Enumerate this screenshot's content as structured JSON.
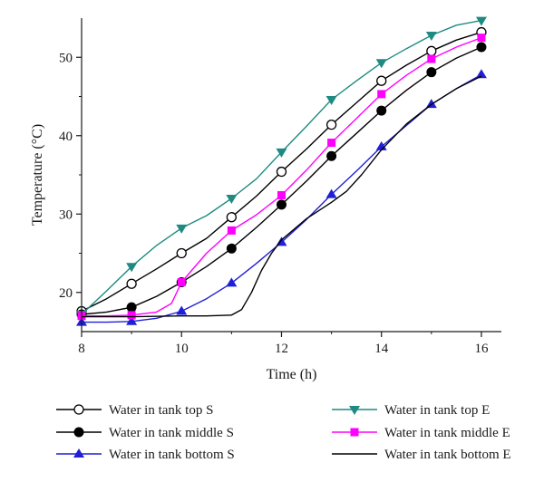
{
  "chart_data": {
    "type": "line",
    "xlabel": "Time (h)",
    "ylabel": "Temperature (°C)",
    "xlim": [
      8,
      16.4
    ],
    "ylim": [
      15,
      55
    ],
    "xticks": [
      8,
      10,
      12,
      14,
      16
    ],
    "xticks_minor": [
      9,
      11,
      13,
      15
    ],
    "yticks": [
      20,
      30,
      40,
      50
    ],
    "grid": false,
    "legend_position": "bottom",
    "series": [
      {
        "name": "Water in tank top S",
        "color": "#000000",
        "marker": "circle-open",
        "x": [
          8,
          8.5,
          9,
          9.5,
          10,
          10.5,
          11,
          11.5,
          12,
          12.5,
          13,
          13.5,
          14,
          14.5,
          15,
          15.5,
          16
        ],
        "y": [
          17.6,
          19.2,
          21.1,
          23.0,
          25.0,
          26.9,
          29.6,
          32.3,
          35.4,
          38.3,
          41.4,
          44.2,
          47.0,
          49.0,
          50.8,
          52.2,
          53.2
        ],
        "marker_x": [
          8,
          9,
          10,
          11,
          12,
          13,
          14,
          15,
          16
        ],
        "marker_y": [
          17.6,
          21.1,
          25.0,
          29.6,
          35.4,
          41.4,
          47.0,
          50.8,
          53.2
        ]
      },
      {
        "name": "Water in tank middle S",
        "color": "#000000",
        "marker": "circle-filled",
        "x": [
          8,
          8.5,
          9,
          9.5,
          10,
          10.5,
          11,
          11.5,
          12,
          12.5,
          13,
          13.5,
          14,
          14.5,
          15,
          15.5,
          16
        ],
        "y": [
          17.2,
          17.5,
          18.1,
          19.5,
          21.3,
          23.3,
          25.6,
          28.3,
          31.2,
          34.2,
          37.4,
          40.3,
          43.2,
          45.8,
          48.1,
          49.9,
          51.3
        ],
        "marker_x": [
          8,
          9,
          10,
          11,
          12,
          13,
          14,
          15,
          16
        ],
        "marker_y": [
          17.2,
          18.1,
          21.3,
          25.6,
          31.2,
          37.4,
          43.2,
          48.1,
          51.3
        ]
      },
      {
        "name": "Water in tank bottom S",
        "color": "#1f1fd6",
        "marker": "triangle-up",
        "x": [
          8,
          8.5,
          9,
          9.5,
          10,
          10.5,
          11,
          11.5,
          12,
          12.5,
          13,
          13.5,
          14,
          14.5,
          15,
          15.5,
          16
        ],
        "y": [
          16.2,
          16.2,
          16.3,
          16.7,
          17.6,
          19.2,
          21.2,
          23.7,
          26.4,
          29.3,
          32.5,
          35.5,
          38.6,
          41.3,
          44.0,
          46.0,
          47.8
        ],
        "marker_x": [
          8,
          9,
          10,
          11,
          12,
          13,
          14,
          15,
          16
        ],
        "marker_y": [
          16.2,
          16.3,
          17.6,
          21.2,
          26.4,
          32.5,
          38.6,
          44.0,
          47.8
        ]
      },
      {
        "name": "Water in tank top E",
        "color": "#1e8a82",
        "marker": "triangle-down",
        "x": [
          8,
          8.5,
          9,
          9.5,
          10,
          10.5,
          11,
          11.5,
          12,
          12.5,
          13,
          13.5,
          14,
          14.5,
          15,
          15.5,
          16
        ],
        "y": [
          17.2,
          20.2,
          23.3,
          26.0,
          28.2,
          29.8,
          32.0,
          34.5,
          37.9,
          41.2,
          44.6,
          47.0,
          49.3,
          51.1,
          52.8,
          54.1,
          54.7
        ],
        "marker_x": [
          8,
          9,
          10,
          11,
          12,
          13,
          14,
          15,
          16
        ],
        "marker_y": [
          17.2,
          23.3,
          28.2,
          32.0,
          37.9,
          44.6,
          49.3,
          52.8,
          54.7
        ]
      },
      {
        "name": "Water in tank middle E",
        "color": "#ff00ff",
        "marker": "square",
        "x": [
          8,
          8.5,
          9,
          9.5,
          9.8,
          10,
          10.5,
          11,
          11.5,
          12,
          12.5,
          13,
          13.5,
          14,
          14.5,
          15,
          15.5,
          16
        ],
        "y": [
          17.0,
          17.0,
          17.1,
          17.5,
          18.6,
          21.3,
          25.0,
          27.9,
          29.9,
          32.4,
          35.6,
          39.1,
          42.2,
          45.3,
          47.7,
          49.8,
          51.3,
          52.5
        ],
        "marker_x": [
          8,
          9,
          10,
          11,
          12,
          13,
          14,
          15,
          16
        ],
        "marker_y": [
          17.0,
          17.1,
          21.3,
          27.9,
          32.4,
          39.1,
          45.3,
          49.8,
          52.5
        ]
      },
      {
        "name": "Water in tank bottom E",
        "color": "#000000",
        "marker": "none",
        "x": [
          8,
          9,
          10,
          10.5,
          11,
          11.2,
          11.4,
          11.6,
          11.8,
          12,
          12.5,
          13,
          13.3,
          13.6,
          14,
          14.5,
          15,
          15.5,
          16
        ],
        "y": [
          16.9,
          16.9,
          17.0,
          17.0,
          17.1,
          17.8,
          20.0,
          22.8,
          25.0,
          26.7,
          29.4,
          31.5,
          32.9,
          35.0,
          38.2,
          41.5,
          44.0,
          46.0,
          47.6
        ],
        "marker_x": [],
        "marker_y": []
      }
    ]
  }
}
